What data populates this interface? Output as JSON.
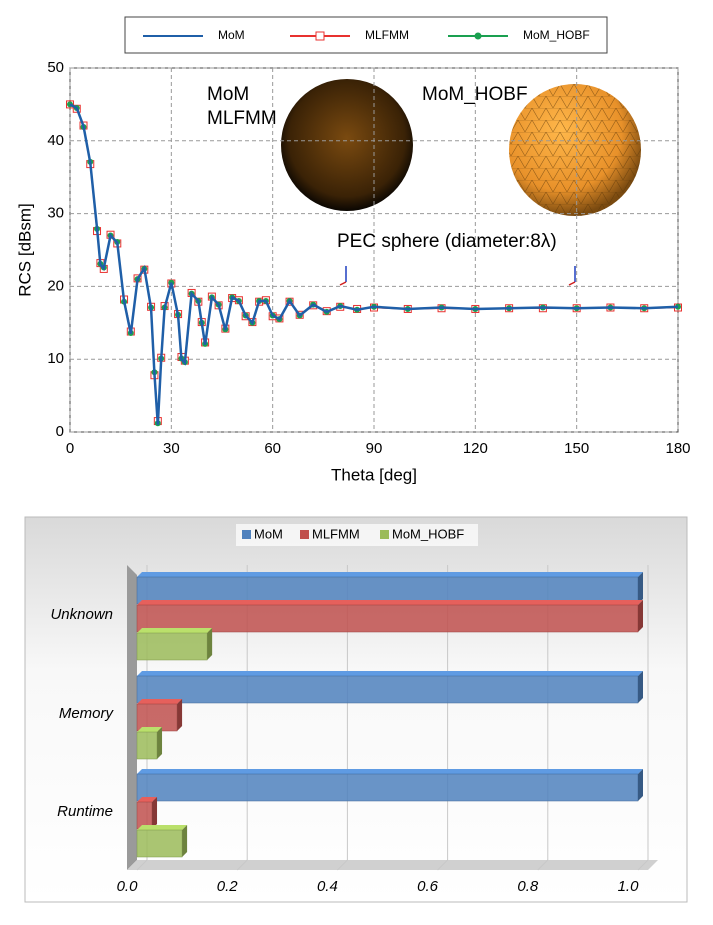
{
  "chart_data": [
    {
      "type": "line",
      "x_label": "Theta [deg]",
      "y_label": "RCS [dBsm]",
      "annotations": [
        "MoM",
        "MLFMM",
        "MoM_HOBF",
        "PEC sphere (diameter:8λ)"
      ],
      "x": [
        0,
        2,
        4,
        6,
        8,
        9,
        10,
        12,
        14,
        16,
        18,
        20,
        22,
        24,
        25,
        26,
        27,
        28,
        30,
        32,
        33,
        34,
        36,
        38,
        39,
        40,
        42,
        44,
        46,
        48,
        50,
        52,
        54,
        56,
        58,
        60,
        62,
        65,
        68,
        72,
        76,
        80,
        85,
        90,
        100,
        110,
        120,
        130,
        140,
        150,
        160,
        170,
        180
      ],
      "series": [
        {
          "name": "MoM",
          "color": "#1f5fa8",
          "values": [
            45,
            44.5,
            42,
            37,
            28,
            23,
            22.5,
            27,
            26,
            18,
            13.5,
            21,
            22.5,
            17,
            8,
            1,
            10,
            17,
            20.5,
            16,
            10,
            9.5,
            19,
            18,
            15,
            12,
            18.5,
            17.5,
            14,
            18.5,
            18,
            16,
            15,
            18,
            18,
            16,
            15.5,
            18,
            16,
            17.5,
            16.5,
            17.3,
            16.8,
            17.2,
            16.9,
            17.1,
            16.9,
            17,
            17.1,
            17,
            17.1,
            17,
            17.2
          ]
        },
        {
          "name": "MLFMM",
          "color": "#e8312f",
          "marker": "square",
          "values": [
            45,
            44.4,
            42.1,
            36.8,
            27.6,
            23.2,
            22.4,
            27.1,
            25.9,
            18.2,
            13.8,
            21.1,
            22.3,
            17.2,
            7.8,
            1.5,
            10.2,
            17.3,
            20.4,
            16.2,
            10.3,
            9.8,
            19.1,
            17.9,
            15.1,
            12.3,
            18.6,
            17.4,
            14.2,
            18.4,
            18.1,
            15.9,
            15.1,
            17.9,
            18.1,
            15.9,
            15.6,
            17.9,
            16.1,
            17.4,
            16.6,
            17.2,
            16.9,
            17.1,
            16.9,
            17,
            16.9,
            17,
            17,
            17,
            17.1,
            17,
            17.1
          ]
        },
        {
          "name": "MoM_HOBF",
          "color": "#1aa050",
          "marker": "circle",
          "values": [
            45,
            44.5,
            41.9,
            37.1,
            27.9,
            23.1,
            22.6,
            27,
            26.1,
            17.9,
            13.6,
            21,
            22.4,
            17.1,
            8.2,
            1.2,
            10.1,
            17.1,
            20.5,
            16.1,
            10.1,
            9.6,
            19,
            18,
            15,
            12.1,
            18.5,
            17.5,
            14.1,
            18.5,
            18,
            16,
            15,
            18,
            18,
            16,
            15.5,
            18,
            16,
            17.5,
            16.5,
            17.3,
            16.8,
            17.2,
            16.9,
            17.1,
            16.9,
            17,
            17.1,
            17,
            17.1,
            17,
            17.2
          ]
        }
      ],
      "xlim": [
        0,
        180
      ],
      "xticks": [
        0,
        30,
        60,
        90,
        120,
        150,
        180
      ],
      "ylim": [
        0,
        50
      ],
      "yticks": [
        0,
        10,
        20,
        30,
        40,
        50
      ],
      "grid": true,
      "legend": "top"
    },
    {
      "type": "bar3d-horizontal",
      "categories": [
        "Unknown",
        "Memory",
        "Runtime"
      ],
      "series": [
        {
          "name": "MoM",
          "color": "#4f81bd",
          "values": [
            1,
            1,
            1
          ]
        },
        {
          "name": "MLFMM",
          "color": "#c0504d",
          "values": [
            1,
            0.08,
            0.03
          ]
        },
        {
          "name": "MoM_HOBF",
          "color": "#9bbb59",
          "values": [
            0.14,
            0.04,
            0.09
          ]
        }
      ],
      "xlim": [
        0,
        1
      ],
      "xticks": [
        {
          "value": 0,
          "label": "0.0"
        },
        0.2,
        0.4,
        0.6,
        0.8,
        {
          "value": 1,
          "label": "1.0"
        }
      ],
      "grid": true,
      "legend": "top"
    }
  ]
}
